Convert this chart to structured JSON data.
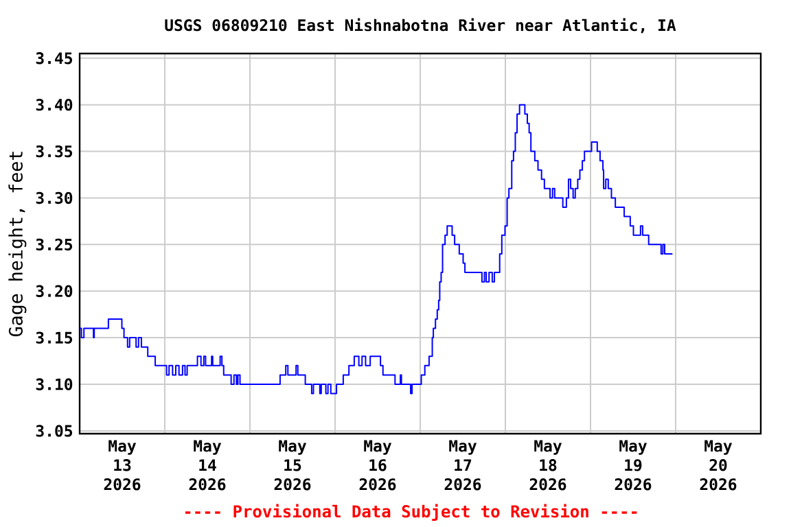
{
  "chart_data": {
    "type": "step",
    "title": "USGS 06809210 East Nishnabotna River near Atlantic, IA",
    "ylabel": "Gage height, feet",
    "annotations": [
      "---- Provisional Data Subject to Revision ----"
    ],
    "xlim": [
      "2026-05-13T00:00",
      "2026-05-21T00:00"
    ],
    "xticks": [
      {
        "value": "2026-05-13T12:00",
        "label": "May 13 2026"
      },
      {
        "value": "2026-05-14T12:00",
        "label": "May 14 2026"
      },
      {
        "value": "2026-05-15T12:00",
        "label": "May 15 2026"
      },
      {
        "value": "2026-05-16T12:00",
        "label": "May 16 2026"
      },
      {
        "value": "2026-05-17T12:00",
        "label": "May 17 2026"
      },
      {
        "value": "2026-05-18T12:00",
        "label": "May 18 2026"
      },
      {
        "value": "2026-05-19T12:00",
        "label": "May 19 2026"
      },
      {
        "value": "2026-05-20T12:00",
        "label": "May 20 2026"
      },
      {
        "value": "2026-05-14T00:00",
        "label": null
      },
      {
        "value": "2026-05-15T00:00",
        "label": null
      },
      {
        "value": "2026-05-16T00:00",
        "label": null
      },
      {
        "value": "2026-05-17T00:00",
        "label": null
      },
      {
        "value": "2026-05-18T00:00",
        "label": null
      },
      {
        "value": "2026-05-19T00:00",
        "label": null
      },
      {
        "value": "2026-05-20T00:00",
        "label": null
      }
    ],
    "ylim": [
      3.047,
      3.455
    ],
    "yticks": [
      3.05,
      {
        "value": 3.1,
        "label": "3.10"
      },
      3.15,
      {
        "value": 3.2,
        "label": "3.20"
      },
      3.25,
      {
        "value": 3.3,
        "label": "3.30"
      },
      3.35,
      {
        "value": 3.4,
        "label": "3.40"
      },
      3.45
    ],
    "grid": true,
    "marker": "none",
    "line_style": "solid",
    "series": [
      {
        "color": "#0000ff",
        "x": [
          "2026-05-13T00:00",
          "2026-05-13T00:30",
          "2026-05-13T01:12",
          "2026-05-13T03:54",
          "2026-05-13T04:06",
          "2026-05-13T08:06",
          "2026-05-13T11:54",
          "2026-05-13T12:30",
          "2026-05-13T13:30",
          "2026-05-13T14:06",
          "2026-05-13T15:54",
          "2026-05-13T16:36",
          "2026-05-13T17:24",
          "2026-05-13T19:12",
          "2026-05-13T21:18",
          "2026-05-14T00:30",
          "2026-05-14T01:12",
          "2026-05-14T02:12",
          "2026-05-14T03:06",
          "2026-05-14T04:00",
          "2026-05-14T05:00",
          "2026-05-14T05:42",
          "2026-05-14T06:18",
          "2026-05-14T09:12",
          "2026-05-14T10:12",
          "2026-05-14T11:00",
          "2026-05-14T11:30",
          "2026-05-14T13:12",
          "2026-05-14T13:30",
          "2026-05-14T15:36",
          "2026-05-14T16:06",
          "2026-05-14T16:36",
          "2026-05-14T18:42",
          "2026-05-14T19:30",
          "2026-05-14T20:12",
          "2026-05-14T20:36",
          "2026-05-14T21:12",
          "2026-05-15T08:30",
          "2026-05-15T10:06",
          "2026-05-15T10:42",
          "2026-05-15T13:00",
          "2026-05-15T13:30",
          "2026-05-15T15:36",
          "2026-05-15T17:24",
          "2026-05-15T17:54",
          "2026-05-15T19:42",
          "2026-05-15T20:06",
          "2026-05-15T21:24",
          "2026-05-15T22:00",
          "2026-05-15T22:48",
          "2026-05-16T00:24",
          "2026-05-16T02:18",
          "2026-05-16T03:54",
          "2026-05-16T05:24",
          "2026-05-16T06:42",
          "2026-05-16T07:36",
          "2026-05-16T08:36",
          "2026-05-16T09:54",
          "2026-05-16T12:48",
          "2026-05-16T13:30",
          "2026-05-16T16:54",
          "2026-05-16T18:24",
          "2026-05-16T18:42",
          "2026-05-16T21:18",
          "2026-05-16T21:42",
          "2026-05-17T00:18",
          "2026-05-17T01:18",
          "2026-05-17T02:30",
          "2026-05-17T03:24",
          "2026-05-17T03:42",
          "2026-05-17T04:18",
          "2026-05-17T04:48",
          "2026-05-17T05:12",
          "2026-05-17T05:30",
          "2026-05-17T05:54",
          "2026-05-17T06:18",
          "2026-05-17T07:00",
          "2026-05-17T07:36",
          "2026-05-17T09:00",
          "2026-05-17T09:42",
          "2026-05-17T11:00",
          "2026-05-17T12:06",
          "2026-05-17T12:36",
          "2026-05-17T17:24",
          "2026-05-17T18:06",
          "2026-05-17T18:36",
          "2026-05-17T19:24",
          "2026-05-17T20:18",
          "2026-05-17T20:54",
          "2026-05-17T22:24",
          "2026-05-17T23:00",
          "2026-05-17T23:54",
          "2026-05-18T00:30",
          "2026-05-18T01:00",
          "2026-05-18T01:48",
          "2026-05-18T02:18",
          "2026-05-18T02:48",
          "2026-05-18T03:18",
          "2026-05-18T04:00",
          "2026-05-18T05:30",
          "2026-05-18T06:12",
          "2026-05-18T06:42",
          "2026-05-18T07:12",
          "2026-05-18T08:18",
          "2026-05-18T09:12",
          "2026-05-18T10:12",
          "2026-05-18T11:00",
          "2026-05-18T12:36",
          "2026-05-18T13:18",
          "2026-05-18T13:54",
          "2026-05-18T16:12",
          "2026-05-18T17:12",
          "2026-05-18T17:48",
          "2026-05-18T18:24",
          "2026-05-18T19:06",
          "2026-05-18T19:42",
          "2026-05-18T20:24",
          "2026-05-18T21:00",
          "2026-05-18T21:42",
          "2026-05-18T22:18",
          "2026-05-19T00:18",
          "2026-05-19T01:54",
          "2026-05-19T02:42",
          "2026-05-19T03:30",
          "2026-05-19T03:42",
          "2026-05-19T04:18",
          "2026-05-19T05:00",
          "2026-05-19T05:54",
          "2026-05-19T07:00",
          "2026-05-19T09:30",
          "2026-05-19T11:12",
          "2026-05-19T12:06",
          "2026-05-19T14:06",
          "2026-05-19T14:42",
          "2026-05-19T16:24",
          "2026-05-19T19:54",
          "2026-05-19T20:24",
          "2026-05-19T20:54",
          "2026-05-19T23:06"
        ],
        "values": [
          3.16,
          3.15,
          3.16,
          3.15,
          3.16,
          3.17,
          3.16,
          3.15,
          3.14,
          3.15,
          3.14,
          3.15,
          3.14,
          3.13,
          3.12,
          3.11,
          3.12,
          3.11,
          3.12,
          3.11,
          3.12,
          3.11,
          3.12,
          3.13,
          3.12,
          3.13,
          3.12,
          3.13,
          3.12,
          3.13,
          3.12,
          3.11,
          3.1,
          3.11,
          3.1,
          3.11,
          3.1,
          3.11,
          3.12,
          3.11,
          3.12,
          3.11,
          3.1,
          3.09,
          3.1,
          3.09,
          3.1,
          3.09,
          3.1,
          3.09,
          3.1,
          3.11,
          3.12,
          3.13,
          3.12,
          3.13,
          3.12,
          3.13,
          3.12,
          3.11,
          3.1,
          3.11,
          3.1,
          3.09,
          3.1,
          3.11,
          3.12,
          3.13,
          3.15,
          3.16,
          3.17,
          3.18,
          3.19,
          3.21,
          3.22,
          3.25,
          3.26,
          3.27,
          3.26,
          3.25,
          3.24,
          3.23,
          3.22,
          3.21,
          3.22,
          3.21,
          3.22,
          3.21,
          3.22,
          3.24,
          3.26,
          3.27,
          3.3,
          3.31,
          3.34,
          3.35,
          3.37,
          3.39,
          3.4,
          3.39,
          3.38,
          3.37,
          3.35,
          3.34,
          3.33,
          3.32,
          3.31,
          3.3,
          3.31,
          3.3,
          3.29,
          3.3,
          3.32,
          3.31,
          3.3,
          3.31,
          3.32,
          3.33,
          3.34,
          3.35,
          3.36,
          3.35,
          3.34,
          3.33,
          3.31,
          3.32,
          3.31,
          3.3,
          3.29,
          3.28,
          3.27,
          3.26,
          3.27,
          3.26,
          3.25,
          3.24,
          3.25,
          3.24,
          3.24
        ]
      }
    ]
  }
}
